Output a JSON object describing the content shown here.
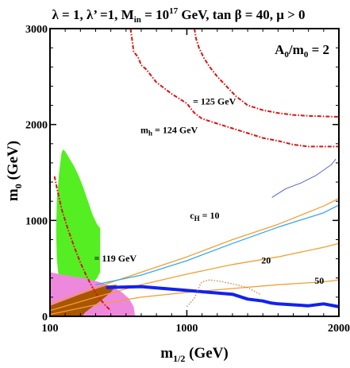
{
  "chart_data": {
    "type": "line",
    "title_parts": {
      "a": "λ = 1, λ’ =1, M",
      "a_sub": "in",
      "b": " = 10",
      "b_sup": "17",
      "c": " GeV, tan β = 40,  μ > 0"
    },
    "xlabel": {
      "main": "m",
      "sub": "1/2",
      "rest": " (GeV)"
    },
    "ylabel": {
      "main": "m",
      "sub": "0",
      "rest": " (GeV)"
    },
    "xlim": [
      100,
      2000
    ],
    "ylim": [
      0,
      3000
    ],
    "xticks": [
      {
        "value": 100,
        "label": "100"
      },
      {
        "value": 1000,
        "label": "1000"
      },
      {
        "value": 2000,
        "label": "2000"
      }
    ],
    "yticks": [
      {
        "value": 0,
        "label": "0"
      },
      {
        "value": 1000,
        "label": "1000"
      },
      {
        "value": 2000,
        "label": "2000"
      },
      {
        "value": 3000,
        "label": "3000"
      }
    ],
    "ratio_label": {
      "main": "A",
      "sub": "0",
      "rest": "/m",
      "sub2": "0",
      "tail": " = 2"
    },
    "annotations": [
      {
        "text": "= 125 GeV",
        "x": 1040,
        "y": 2210
      },
      {
        "text": "m",
        "sub": "h",
        "rest": "  = 124 GeV",
        "x": 695,
        "y": 1910
      },
      {
        "text": "= 119 GeV",
        "x": 390,
        "y": 570
      },
      {
        "text": "c",
        "sub": "H",
        "rest": " =  10",
        "x": 1020,
        "y": 1020
      },
      {
        "text": "20",
        "x": 1490,
        "y": 550
      },
      {
        "text": "50",
        "x": 1840,
        "y": 340
      }
    ],
    "regions": [
      {
        "name": "green-region",
        "color": "#55ee22",
        "points": [
          [
            185,
            1740
          ],
          [
            200,
            1720
          ],
          [
            230,
            1640
          ],
          [
            260,
            1560
          ],
          [
            290,
            1460
          ],
          [
            320,
            1340
          ],
          [
            350,
            1200
          ],
          [
            380,
            1060
          ],
          [
            410,
            960
          ],
          [
            430,
            920
          ],
          [
            430,
            460
          ],
          [
            410,
            400
          ],
          [
            380,
            340
          ],
          [
            340,
            250
          ],
          [
            300,
            160
          ],
          [
            260,
            90
          ],
          [
            220,
            60
          ],
          [
            200,
            80
          ],
          [
            180,
            180
          ],
          [
            160,
            360
          ],
          [
            145,
            600
          ],
          [
            140,
            900
          ],
          [
            145,
            1200
          ],
          [
            160,
            1500
          ],
          [
            175,
            1700
          ]
        ]
      },
      {
        "name": "pink-region",
        "color": "#ee88dd",
        "points": [
          [
            100,
            460
          ],
          [
            160,
            440
          ],
          [
            240,
            420
          ],
          [
            330,
            395
          ],
          [
            420,
            360
          ],
          [
            500,
            315
          ],
          [
            570,
            255
          ],
          [
            620,
            185
          ],
          [
            650,
            100
          ],
          [
            660,
            0
          ],
          [
            100,
            0
          ]
        ]
      },
      {
        "name": "brown-region",
        "color": "#aa5500",
        "points": [
          [
            100,
            0
          ],
          [
            100,
            110
          ],
          [
            200,
            170
          ],
          [
            300,
            230
          ],
          [
            400,
            285
          ],
          [
            470,
            320
          ],
          [
            540,
            330
          ],
          [
            500,
            250
          ],
          [
            440,
            170
          ],
          [
            380,
            100
          ],
          [
            330,
            40
          ],
          [
            310,
            0
          ]
        ]
      }
    ],
    "series": [
      {
        "name": "mh-125-contour",
        "color": "#dd1111",
        "style": "dashed",
        "x": [
          630,
          640,
          650,
          680,
          700,
          730,
          760,
          800,
          900,
          1000,
          1050,
          1100,
          1200,
          1300,
          1400,
          1500,
          1600,
          1700,
          1800,
          1900,
          2000
        ],
        "y": [
          3000,
          2880,
          2760,
          2700,
          2620,
          2580,
          2520,
          2440,
          2320,
          2220,
          2120,
          2060,
          2010,
          1960,
          1910,
          1860,
          1830,
          1790,
          1770,
          1770,
          1770
        ]
      },
      {
        "name": "mh-124-contour",
        "color": "#dd1111",
        "style": "dashed",
        "x": [
          1050,
          1060,
          1080,
          1110,
          1150,
          1200,
          1260,
          1320,
          1400,
          1500,
          1600,
          1700,
          1800,
          1900,
          2000
        ],
        "y": [
          3000,
          2900,
          2800,
          2700,
          2600,
          2500,
          2400,
          2300,
          2200,
          2150,
          2120,
          2100,
          2090,
          2085,
          2080
        ]
      },
      {
        "name": "mh-119-contour",
        "color": "#dd1111",
        "style": "dashed",
        "x": [
          130,
          150,
          180,
          220,
          260,
          300,
          340,
          380,
          420,
          460,
          500
        ],
        "y": [
          1460,
          1300,
          1100,
          900,
          720,
          560,
          420,
          300,
          200,
          120,
          60
        ]
      },
      {
        "name": "cH-10",
        "color": "#f0a030",
        "style": "solid",
        "x": [
          100,
          400,
          700,
          1000,
          1300,
          1600,
          1900,
          2000
        ],
        "y": [
          130,
          300,
          460,
          620,
          800,
          960,
          1150,
          1230
        ]
      },
      {
        "name": "cH-20",
        "color": "#f0a030",
        "style": "solid",
        "x": [
          100,
          400,
          700,
          1000,
          1300,
          1600,
          1900,
          2000
        ],
        "y": [
          60,
          200,
          330,
          440,
          540,
          620,
          720,
          760
        ]
      },
      {
        "name": "cH-50",
        "color": "#f0a030",
        "style": "solid",
        "x": [
          100,
          400,
          700,
          1000,
          1300,
          1600,
          1900,
          2000
        ],
        "y": [
          20,
          120,
          200,
          250,
          290,
          330,
          360,
          380
        ]
      },
      {
        "name": "blue-line",
        "color": "#33aaee",
        "style": "solid",
        "x": [
          400,
          700,
          1000,
          1300,
          1600,
          1900,
          2000
        ],
        "y": [
          330,
          430,
          580,
          760,
          930,
          1080,
          1160
        ]
      },
      {
        "name": "blue-strip-bottom",
        "color": "#1122ee",
        "style": "thick",
        "x": [
          470,
          700,
          1000,
          1300,
          1400,
          1500,
          1550,
          1600,
          1700,
          1800,
          1900,
          2000
        ],
        "y": [
          300,
          310,
          270,
          230,
          180,
          160,
          140,
          130,
          120,
          110,
          130,
          100
        ]
      },
      {
        "name": "blue-strip-upper",
        "color": "#3344cc",
        "style": "thin",
        "x": [
          1560,
          1650,
          1750,
          1850,
          1950,
          1980
        ],
        "y": [
          1240,
          1330,
          1390,
          1470,
          1580,
          1640
        ]
      },
      {
        "name": "brown-dotted",
        "color": "#cc7733",
        "style": "dotted",
        "x": [
          1000,
          1050,
          1080,
          1090,
          1100,
          1150,
          1200,
          1300,
          1400,
          1480
        ],
        "y": [
          100,
          190,
          300,
          340,
          360,
          380,
          370,
          340,
          300,
          230
        ]
      }
    ]
  }
}
